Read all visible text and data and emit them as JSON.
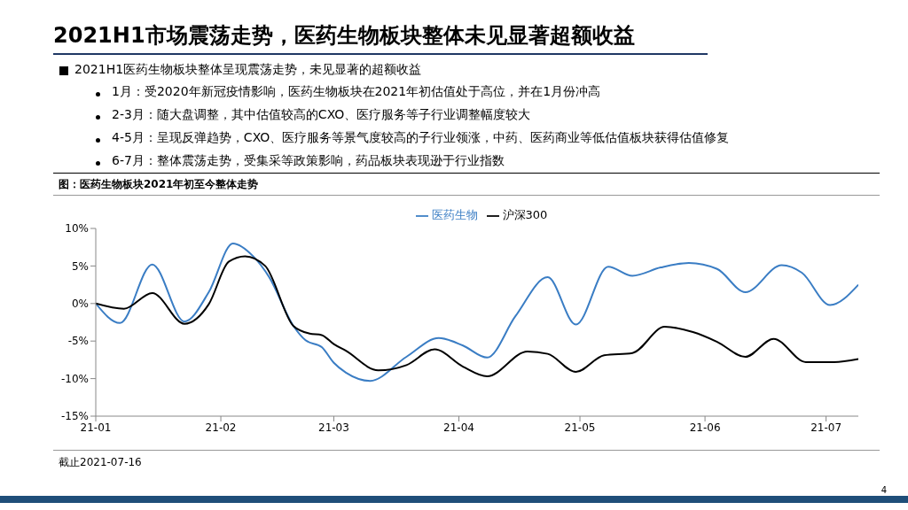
{
  "chart_data": {
    "type": "line",
    "title": "2021H1市场震荡走势，医药生物板块整体未见显著超额收益",
    "subtitle": "2021H1医药生物板块整体呈现震荡走势，未见显著的超额收益",
    "annotations": [
      "1月：受2020年新冠疫情影响，医药生物板块在2021年初估值处于高位，并在1月份冲高",
      "2-3月：随大盘调整，其中估值较高的CXO、医疗服务等子行业调整幅度较大",
      "4-5月：呈现反弹趋势，CXO、医疗服务等景气度较高的子行业领涨，中药、医药商业等低估值板块获得估值修复",
      "6-7月：整体震荡走势，受集采等政策影响，药品板块表现逊于行业指数",
      "图：医药生物板块2021年初至今整体走势",
      "截止2021-07-16",
      "4"
    ],
    "series": [
      {
        "name": "医药生物",
        "color": "#3a7dc4",
        "x": [
          "2021-01-01",
          "2021-01-07",
          "2021-01-15",
          "2021-01-23",
          "2021-01-29",
          "2021-02-04",
          "2021-02-09",
          "2021-02-13",
          "2021-02-19",
          "2021-02-22",
          "2021-02-26",
          "2021-03-01",
          "2021-03-04",
          "2021-03-10",
          "2021-03-19",
          "2021-03-27",
          "2021-04-02",
          "2021-04-08",
          "2021-04-15",
          "2021-04-23",
          "2021-04-30",
          "2021-05-08",
          "2021-05-14",
          "2021-05-21",
          "2021-05-28",
          "2021-06-04",
          "2021-06-11",
          "2021-06-20",
          "2021-06-25",
          "2021-07-02",
          "2021-07-09"
        ],
        "values": [
          0,
          -2.6,
          5.2,
          -2.4,
          1.5,
          8.0,
          6.3,
          3.5,
          -3.0,
          -4.9,
          -5.8,
          -7.9,
          -9.2,
          -10.3,
          -7.1,
          -4.6,
          -5.6,
          -7.2,
          -1.7,
          3.5,
          -2.8,
          4.9,
          3.7,
          4.8,
          5.4,
          4.6,
          1.5,
          5.1,
          4.1,
          -0.2,
          2.5
        ]
      },
      {
        "name": "沪深300",
        "color": "#000000",
        "x": [
          "2021-01-01",
          "2021-01-08",
          "2021-01-15",
          "2021-01-23",
          "2021-01-29",
          "2021-02-03",
          "2021-02-07",
          "2021-02-12",
          "2021-02-19",
          "2021-02-23",
          "2021-02-26",
          "2021-03-01",
          "2021-03-04",
          "2021-03-12",
          "2021-03-19",
          "2021-03-26",
          "2021-04-02",
          "2021-04-08",
          "2021-04-18",
          "2021-04-23",
          "2021-04-30",
          "2021-05-07",
          "2021-05-14",
          "2021-05-22",
          "2021-05-29",
          "2021-06-04",
          "2021-06-11",
          "2021-06-18",
          "2021-06-26",
          "2021-07-03",
          "2021-07-09"
        ],
        "values": [
          0,
          -0.7,
          1.4,
          -2.7,
          -0.1,
          5.6,
          6.3,
          5.0,
          -3.0,
          -4.0,
          -4.2,
          -5.4,
          -6.3,
          -8.9,
          -8.2,
          -6.1,
          -8.4,
          -9.7,
          -6.4,
          -6.7,
          -9.1,
          -6.9,
          -6.6,
          -3.1,
          -3.8,
          -5.1,
          -7.1,
          -4.7,
          -7.8,
          -7.8,
          -7.4
        ]
      }
    ],
    "xlim": [
      "2021-01-01",
      "2021-07-09"
    ],
    "xticks": [
      {
        "value": "2021-01-01",
        "label": "21-01"
      },
      {
        "value": "2021-02-01",
        "label": "21-02"
      },
      {
        "value": "2021-03-01",
        "label": "21-03"
      },
      {
        "value": "2021-04-01",
        "label": "21-04"
      },
      {
        "value": "2021-05-01",
        "label": "21-05"
      },
      {
        "value": "2021-06-01",
        "label": "21-06"
      },
      {
        "value": "2021-07-01",
        "label": "21-07"
      }
    ],
    "ylim": [
      -15,
      10
    ],
    "yticks": [
      {
        "value": -15,
        "label": "-15%"
      },
      {
        "value": -10,
        "label": "-10%"
      },
      {
        "value": -5,
        "label": "-5%"
      },
      {
        "value": 0,
        "label": "0%"
      },
      {
        "value": 5,
        "label": "5%"
      },
      {
        "value": 10,
        "label": "10%"
      }
    ],
    "legend": "top",
    "marker": "none"
  }
}
